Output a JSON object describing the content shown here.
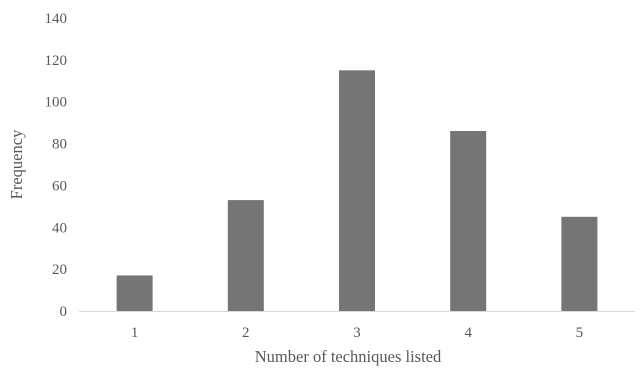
{
  "chart_data": {
    "type": "bar",
    "categories": [
      "1",
      "2",
      "3",
      "4",
      "5"
    ],
    "values": [
      17,
      53,
      115,
      86,
      45
    ],
    "title": "",
    "xlabel": "Number of techniques listed",
    "ylabel": "Frequency",
    "ylim": [
      0,
      140
    ],
    "yticks": [
      0,
      20,
      40,
      60,
      80,
      100,
      120,
      140
    ],
    "grid": false,
    "legend": "none",
    "bar_color": "#757575",
    "axis_color": "#d9d9d9",
    "text_color": "#595959"
  }
}
